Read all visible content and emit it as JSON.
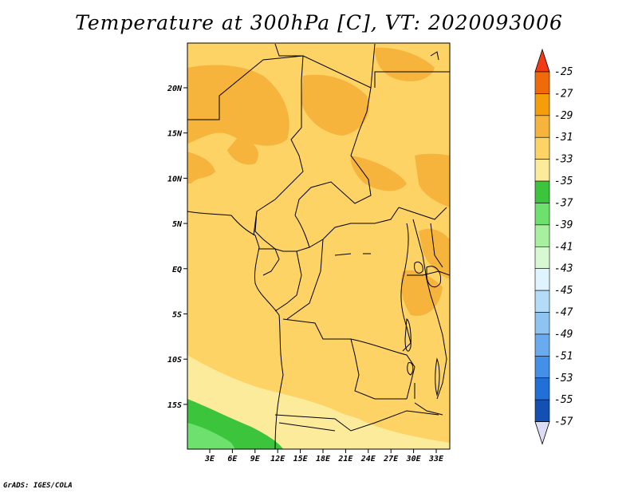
{
  "title": "Temperature at 300hPa [C], VT: 2020093006",
  "credit": "GrADS: IGES/COLA",
  "map": {
    "lat_labels": [
      "20N",
      "15N",
      "10N",
      "5N",
      "EQ",
      "5S",
      "10S",
      "15S"
    ],
    "lon_labels": [
      "3E",
      "6E",
      "9E",
      "12E",
      "15E",
      "18E",
      "21E",
      "24E",
      "27E",
      "30E",
      "33E"
    ]
  },
  "colorbar": {
    "labels": [
      "-25",
      "-27",
      "-29",
      "-31",
      "-33",
      "-35",
      "-37",
      "-39",
      "-41",
      "-43",
      "-45",
      "-47",
      "-49",
      "-51",
      "-53",
      "-55",
      "-57"
    ],
    "colors": [
      "#f03c14",
      "#f06a0a",
      "#f59e0a",
      "#f7b43c",
      "#fcd364",
      "#fdeb9c",
      "#fff3bc",
      "#3dc43d",
      "#6ee06e",
      "#a7f0a0",
      "#d8f8d4",
      "#e0f4ff",
      "#b4dcf8",
      "#8ec4f2",
      "#6aaaee",
      "#4490e8",
      "#2070d8",
      "#1450b4",
      "#0a2e8a",
      "#080c6a",
      "#dcdcf4"
    ]
  }
}
